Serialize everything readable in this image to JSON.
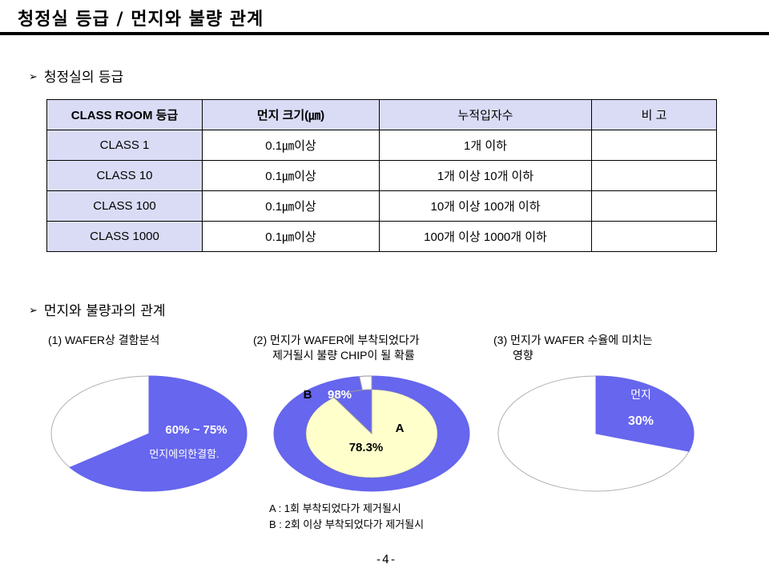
{
  "title": "청정실 등급 / 먼지와 불량 관계",
  "section1": {
    "bullet": "➢",
    "heading": "청정실의 등급"
  },
  "table": {
    "headers": [
      "CLASS ROOM 등급",
      "먼지 크기(㎛)",
      "누적입자수",
      "비 고"
    ],
    "rows": [
      [
        "CLASS 1",
        "0.1㎛이상",
        "1개 이하",
        ""
      ],
      [
        "CLASS 10",
        "0.1㎛이상",
        "1개 이상 10개 이하",
        ""
      ],
      [
        "CLASS 100",
        "0.1㎛이상",
        "10개 이상 100개 이하",
        ""
      ],
      [
        "CLASS 1000",
        "0.1㎛이상",
        "100개 이상 1000개 이하",
        ""
      ]
    ]
  },
  "section2": {
    "bullet": "➢",
    "heading": "먼지와 불량과의 관계"
  },
  "charts": {
    "chart1": {
      "caption": "(1) WAFER상 결함분석",
      "value_label": "60% ~ 75%",
      "sub_label": "먼지에의한결함."
    },
    "chart2": {
      "caption_line1": "(2) 먼지가 WAFER에 부착되었다가",
      "caption_line2": "제거될시 불량 CHIP이 될 확률",
      "label_a": "A",
      "value_a": "78.3%",
      "label_b": "B",
      "value_b": "98%"
    },
    "chart3": {
      "caption_line1": "(3) 먼지가 WAFER 수율에 미치는",
      "caption_line2": "영향",
      "sub_label": "먼지",
      "value_label": "30%"
    }
  },
  "chart_data": [
    {
      "type": "pie",
      "title": "(1) WAFER상 결함분석",
      "labels": [
        "먼지에의한결함."
      ],
      "values": [
        65
      ],
      "value_text": "60% ~ 75%"
    },
    {
      "type": "pie",
      "title": "(2) 먼지가 WAFER에 부착되었다가 제거될시 불량 CHIP이 될 확률",
      "labels": [
        "A",
        "B"
      ],
      "values": [
        78.3,
        98
      ]
    },
    {
      "type": "pie",
      "title": "(3) 먼지가 WAFER 수율에 미치는 영향",
      "labels": [
        "먼지"
      ],
      "values": [
        30
      ]
    }
  ],
  "legend": {
    "line_a": "A : 1회 부착되었다가 제거될시",
    "line_b": "B : 2회 이상 부착되었다가 제거될시"
  },
  "page_number": "-4-",
  "colors": {
    "slice": "#6666ee",
    "header_bg": "#dadcf6",
    "inner_fill": "#ffffcc",
    "slice_text": "#ffffff"
  }
}
